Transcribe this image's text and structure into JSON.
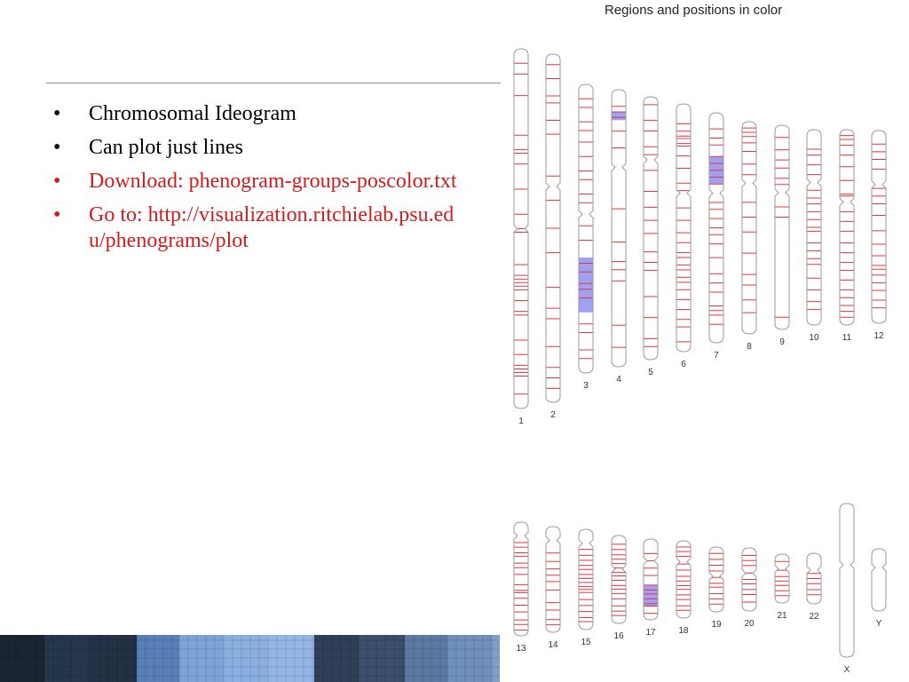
{
  "bullets": [
    {
      "text": "Chromosomal Ideogram",
      "color": "#000000"
    },
    {
      "text": "Can plot just lines",
      "color": "#000000"
    },
    {
      "text": "Download:  phenogram-groups-poscolor.txt",
      "color": "#d11c1c"
    },
    {
      "text": "Go to: http://visualization.ritchielab.psu.edu/phenograms/plot",
      "color": "#d11c1c"
    }
  ],
  "ideogram": {
    "title": "Regions and positions in color",
    "position_color": "#e8333a",
    "region_color": "#8080f0",
    "chromosomes": [
      {
        "name": "1",
        "centromere": 0.5,
        "regions": [],
        "lines": [
          0.04,
          0.07,
          0.13,
          0.24,
          0.28,
          0.29,
          0.32,
          0.39,
          0.46,
          0.5,
          0.51,
          0.6,
          0.63,
          0.64,
          0.65,
          0.66,
          0.67,
          0.7,
          0.73,
          0.74,
          0.81,
          0.85,
          0.88,
          0.89,
          0.9,
          0.91,
          0.96
        ]
      },
      {
        "name": "2",
        "centromere": 0.38,
        "regions": [],
        "lines": [
          0.03,
          0.07,
          0.12,
          0.14,
          0.19,
          0.23,
          0.35,
          0.42,
          0.5,
          0.57,
          0.67,
          0.73,
          0.76,
          0.84,
          0.9,
          0.93,
          0.96
        ]
      },
      {
        "name": "3",
        "centromere": 0.45,
        "regions": [
          [
            0.6,
            0.79
          ]
        ],
        "lines": [
          0.05,
          0.08,
          0.13,
          0.16,
          0.2,
          0.25,
          0.3,
          0.33,
          0.38,
          0.41,
          0.49,
          0.54,
          0.62,
          0.65,
          0.69,
          0.71,
          0.74,
          0.83,
          0.86,
          0.92,
          0.95
        ]
      },
      {
        "name": "4",
        "centromere": 0.28,
        "regions": [
          [
            0.08,
            0.11
          ]
        ],
        "lines": [
          0.06,
          0.08,
          0.1,
          0.15,
          0.21,
          0.43,
          0.55,
          0.62,
          0.65,
          0.69,
          0.85,
          0.93
        ]
      },
      {
        "name": "5",
        "centromere": 0.24,
        "regions": [],
        "lines": [
          0.03,
          0.09,
          0.13,
          0.19,
          0.22,
          0.28,
          0.36,
          0.42,
          0.47,
          0.52,
          0.59,
          0.63,
          0.66,
          0.76,
          0.84,
          0.92,
          0.95
        ]
      },
      {
        "name": "6",
        "centromere": 0.36,
        "regions": [],
        "lines": [
          0.08,
          0.11,
          0.13,
          0.14,
          0.16,
          0.17,
          0.21,
          0.26,
          0.32,
          0.35,
          0.42,
          0.47,
          0.52,
          0.56,
          0.6,
          0.62,
          0.65,
          0.67,
          0.7,
          0.72,
          0.75,
          0.79,
          0.83,
          0.87,
          0.9,
          0.96
        ]
      },
      {
        "name": "7",
        "centromere": 0.35,
        "regions": [
          [
            0.19,
            0.31
          ]
        ],
        "lines": [
          0.07,
          0.11,
          0.14,
          0.19,
          0.22,
          0.25,
          0.28,
          0.31,
          0.39,
          0.42,
          0.46,
          0.5,
          0.53,
          0.57,
          0.63,
          0.7,
          0.74,
          0.78,
          0.84,
          0.86,
          0.88,
          0.92
        ]
      },
      {
        "name": "8",
        "centromere": 0.29,
        "regions": [],
        "lines": [
          0.03,
          0.05,
          0.07,
          0.1,
          0.14,
          0.2,
          0.25,
          0.38,
          0.45,
          0.52,
          0.62,
          0.72,
          0.77,
          0.84,
          0.9
        ]
      },
      {
        "name": "9",
        "centromere": 0.33,
        "regions": [],
        "lines": [
          0.06,
          0.12,
          0.17,
          0.21,
          0.26,
          0.29,
          0.4,
          0.45,
          0.94
        ]
      },
      {
        "name": "10",
        "centromere": 0.27,
        "regions": [],
        "lines": [
          0.1,
          0.13,
          0.18,
          0.23,
          0.31,
          0.35,
          0.38,
          0.42,
          0.46,
          0.5,
          0.52,
          0.58,
          0.62,
          0.66,
          0.69,
          0.76,
          0.82,
          0.88,
          0.92
        ]
      },
      {
        "name": "11",
        "centromere": 0.37,
        "regions": [],
        "lines": [
          0.03,
          0.05,
          0.08,
          0.13,
          0.19,
          0.26,
          0.33,
          0.34,
          0.42,
          0.47,
          0.52,
          0.58,
          0.63,
          0.68,
          0.72,
          0.77,
          0.82,
          0.86,
          0.9,
          0.93,
          0.96
        ]
      },
      {
        "name": "12",
        "centromere": 0.28,
        "regions": [],
        "lines": [
          0.07,
          0.11,
          0.15,
          0.2,
          0.3,
          0.34,
          0.38,
          0.44,
          0.52,
          0.59,
          0.65,
          0.7,
          0.72,
          0.75,
          0.79,
          0.83,
          0.88,
          0.92
        ]
      },
      {
        "name": "13",
        "centromere": 0.12,
        "regions": [],
        "lines": [
          0.18,
          0.22,
          0.27,
          0.3,
          0.36,
          0.4,
          0.46,
          0.55,
          0.6,
          0.62,
          0.67,
          0.73,
          0.79,
          0.86,
          0.9,
          0.95
        ]
      },
      {
        "name": "14",
        "centromere": 0.13,
        "regions": [],
        "lines": [
          0.25,
          0.33,
          0.4,
          0.46,
          0.52,
          0.6,
          0.72,
          0.79,
          0.88,
          0.93
        ]
      },
      {
        "name": "15",
        "centromere": 0.14,
        "regions": [],
        "lines": [
          0.2,
          0.26,
          0.31,
          0.36,
          0.4,
          0.45,
          0.49,
          0.53,
          0.57,
          0.6,
          0.63,
          0.7,
          0.76,
          0.82,
          0.88,
          0.92
        ]
      },
      {
        "name": "16",
        "centromere": 0.38,
        "regions": [],
        "lines": [
          0.1,
          0.16,
          0.22,
          0.27,
          0.32,
          0.37,
          0.42,
          0.46,
          0.51,
          0.57,
          0.61,
          0.66,
          0.72,
          0.8,
          0.86,
          0.91
        ]
      },
      {
        "name": "17",
        "centromere": 0.27,
        "regions": [
          [
            0.57,
            0.83
          ]
        ],
        "lines": [
          0.18,
          0.27,
          0.36,
          0.45,
          0.57,
          0.63,
          0.68,
          0.74,
          0.8,
          0.83,
          0.92
        ]
      },
      {
        "name": "18",
        "centromere": 0.27,
        "regions": [],
        "lines": [
          0.08,
          0.14,
          0.2,
          0.3,
          0.38,
          0.46,
          0.52,
          0.58,
          0.63,
          0.7,
          0.76,
          0.84,
          0.9
        ]
      },
      {
        "name": "19",
        "centromere": 0.45,
        "regions": [],
        "lines": [
          0.1,
          0.19,
          0.28,
          0.37,
          0.47,
          0.56,
          0.62,
          0.72,
          0.8,
          0.88
        ]
      },
      {
        "name": "20",
        "centromere": 0.4,
        "regions": [],
        "lines": [
          0.12,
          0.2,
          0.28,
          0.4,
          0.5,
          0.57,
          0.66,
          0.74,
          0.86
        ]
      },
      {
        "name": "21",
        "centromere": 0.3,
        "regions": [],
        "lines": [
          0.15,
          0.33,
          0.46,
          0.55,
          0.64,
          0.75,
          0.85
        ]
      },
      {
        "name": "22",
        "centromere": 0.33,
        "regions": [],
        "lines": [
          0.4,
          0.5,
          0.6,
          0.72,
          0.82
        ]
      },
      {
        "name": "X",
        "centromere": 0.4,
        "regions": [],
        "lines": []
      },
      {
        "name": "Y",
        "centromere": 0.3,
        "regions": [],
        "lines": []
      }
    ]
  }
}
